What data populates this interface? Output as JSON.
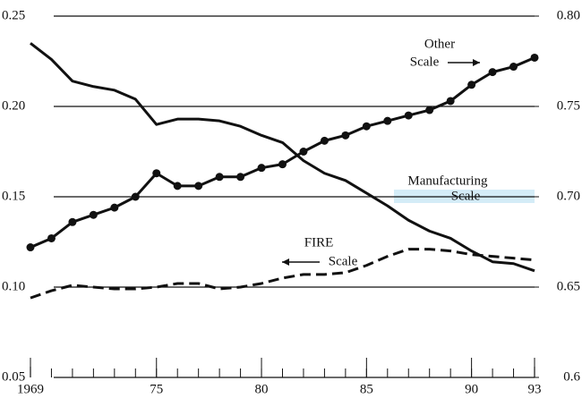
{
  "chart_data": {
    "type": "line",
    "x": [
      1969,
      1970,
      1971,
      1972,
      1973,
      1974,
      1975,
      1976,
      1977,
      1978,
      1979,
      1980,
      1981,
      1982,
      1983,
      1984,
      1985,
      1986,
      1987,
      1988,
      1989,
      1990,
      1991,
      1992,
      1993
    ],
    "xlim": [
      1969,
      1993
    ],
    "xticks": [
      1969,
      {
        "value": 1975,
        "label": "75"
      },
      {
        "value": 1980,
        "label": "80"
      },
      {
        "value": 1985,
        "label": "85"
      },
      {
        "value": 1990,
        "label": "90"
      },
      {
        "value": 1993,
        "label": "93"
      }
    ],
    "xminor_step": 1,
    "ylim": [
      0.05,
      0.25
    ],
    "yticks": [
      0.05,
      {
        "value": 0.1,
        "label": "0.10"
      },
      0.15,
      {
        "value": 0.2,
        "label": "0.20"
      },
      0.25
    ],
    "y2lim": [
      0.6,
      0.8
    ],
    "y2ticks": [
      0.6,
      0.65,
      {
        "value": 0.7,
        "label": "0.70"
      },
      0.75,
      {
        "value": 0.8,
        "label": "0.80"
      }
    ],
    "grid": true,
    "scale_label": "Scale",
    "series": [
      {
        "name": "Manufacturing",
        "color": "#111111",
        "axis": "y2",
        "dash": false,
        "markers": false,
        "values": [
          0.785,
          0.776,
          0.764,
          0.761,
          0.759,
          0.754,
          0.74,
          0.743,
          0.743,
          0.742,
          0.739,
          0.734,
          0.73,
          0.72,
          0.713,
          0.709,
          0.702,
          0.695,
          0.687,
          0.681,
          0.677,
          0.67,
          0.664,
          0.663,
          0.659
        ]
      },
      {
        "name": "Other",
        "color": "#111111",
        "axis": "y2",
        "dash": false,
        "markers": true,
        "values": [
          0.672,
          0.677,
          0.686,
          0.69,
          0.694,
          0.7,
          0.713,
          0.706,
          0.706,
          0.711,
          0.711,
          0.716,
          0.718,
          0.725,
          0.731,
          0.734,
          0.739,
          0.742,
          0.745,
          0.748,
          0.753,
          0.762,
          0.769,
          0.772,
          0.777
        ]
      },
      {
        "name": "FIRE",
        "color": "#111111",
        "axis": "y",
        "dash": true,
        "markers": false,
        "values": [
          0.094,
          0.098,
          0.101,
          0.1,
          0.099,
          0.099,
          0.1,
          0.102,
          0.102,
          0.099,
          0.1,
          0.102,
          0.105,
          0.107,
          0.107,
          0.108,
          0.112,
          0.117,
          0.121,
          0.121,
          0.12,
          0.118,
          0.117,
          0.116,
          0.115
        ]
      }
    ]
  }
}
